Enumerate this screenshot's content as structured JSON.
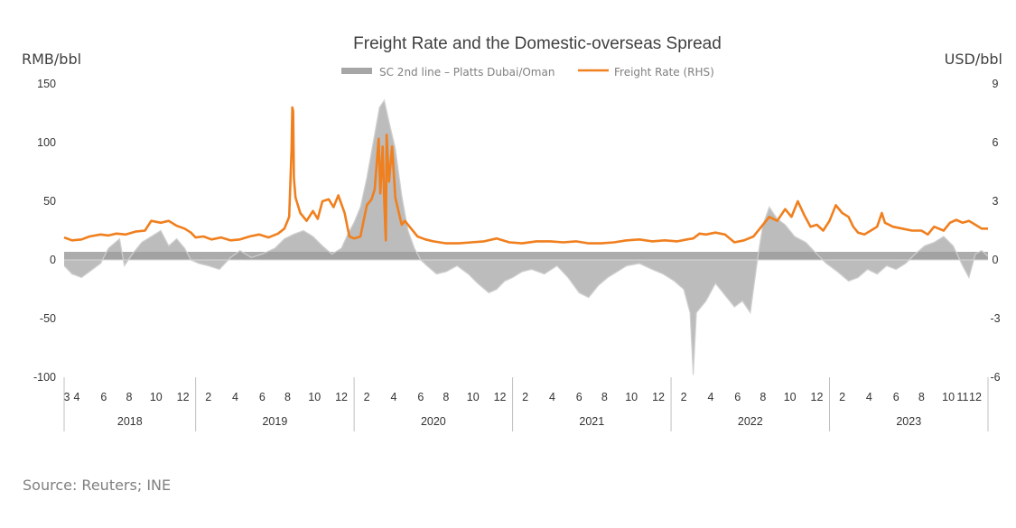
{
  "chart_data": {
    "type": "line",
    "title": "Freight Rate and the Domestic-overseas Spread",
    "ylabel_left": "RMB/bbl",
    "ylabel_right": "USD/bbl",
    "left_ticks": [
      "150",
      "100",
      "50",
      "0",
      "-50",
      "-100"
    ],
    "right_ticks": [
      "9",
      "6",
      "3",
      "0",
      "-3",
      "-6"
    ],
    "ylim_left": [
      -100,
      150
    ],
    "ylim_right": [
      -6,
      9
    ],
    "xlim": [
      2018.17,
      2024.0
    ],
    "month_ticks": [
      {
        "label": "3",
        "t": 2018.17
      },
      {
        "label": "4",
        "t": 2018.25
      },
      {
        "label": "6",
        "t": 2018.42
      },
      {
        "label": "8",
        "t": 2018.58
      },
      {
        "label": "10",
        "t": 2018.75
      },
      {
        "label": "12",
        "t": 2018.92
      },
      {
        "label": "2",
        "t": 2019.08
      },
      {
        "label": "4",
        "t": 2019.25
      },
      {
        "label": "6",
        "t": 2019.42
      },
      {
        "label": "8",
        "t": 2019.58
      },
      {
        "label": "10",
        "t": 2019.75
      },
      {
        "label": "12",
        "t": 2019.92
      },
      {
        "label": "2",
        "t": 2020.08
      },
      {
        "label": "4",
        "t": 2020.25
      },
      {
        "label": "6",
        "t": 2020.42
      },
      {
        "label": "8",
        "t": 2020.58
      },
      {
        "label": "10",
        "t": 2020.75
      },
      {
        "label": "12",
        "t": 2020.92
      },
      {
        "label": "2",
        "t": 2021.08
      },
      {
        "label": "4",
        "t": 2021.25
      },
      {
        "label": "6",
        "t": 2021.42
      },
      {
        "label": "8",
        "t": 2021.58
      },
      {
        "label": "10",
        "t": 2021.75
      },
      {
        "label": "12",
        "t": 2021.92
      },
      {
        "label": "2",
        "t": 2022.08
      },
      {
        "label": "4",
        "t": 2022.25
      },
      {
        "label": "6",
        "t": 2022.42
      },
      {
        "label": "8",
        "t": 2022.58
      },
      {
        "label": "10",
        "t": 2022.75
      },
      {
        "label": "12",
        "t": 2022.92
      },
      {
        "label": "2",
        "t": 2023.08
      },
      {
        "label": "4",
        "t": 2023.25
      },
      {
        "label": "6",
        "t": 2023.42
      },
      {
        "label": "8",
        "t": 2023.58
      },
      {
        "label": "10",
        "t": 2023.75
      },
      {
        "label": "11",
        "t": 2023.84
      },
      {
        "label": "12",
        "t": 2023.92
      }
    ],
    "year_separators": [
      2018.17,
      2019.0,
      2020.0,
      2021.0,
      2022.0,
      2023.0,
      2024.0
    ],
    "years": [
      "2018",
      "2019",
      "2020",
      "2021",
      "2022",
      "2023"
    ],
    "legend": {
      "position": "top-center"
    },
    "series": [
      {
        "name": "SC 2nd line – Platts Dubai/Oman",
        "axis": "left",
        "style": "area",
        "color": "#a6a6a6",
        "points": [
          [
            2018.17,
            -5
          ],
          [
            2018.22,
            -12
          ],
          [
            2018.28,
            -15
          ],
          [
            2018.35,
            -8
          ],
          [
            2018.4,
            -3
          ],
          [
            2018.45,
            10
          ],
          [
            2018.52,
            18
          ],
          [
            2018.55,
            -5
          ],
          [
            2018.6,
            5
          ],
          [
            2018.66,
            15
          ],
          [
            2018.72,
            20
          ],
          [
            2018.78,
            25
          ],
          [
            2018.83,
            12
          ],
          [
            2018.88,
            18
          ],
          [
            2018.93,
            10
          ],
          [
            2018.97,
            0
          ],
          [
            2019.02,
            -3
          ],
          [
            2019.08,
            -5
          ],
          [
            2019.15,
            -8
          ],
          [
            2019.22,
            2
          ],
          [
            2019.28,
            8
          ],
          [
            2019.35,
            2
          ],
          [
            2019.42,
            5
          ],
          [
            2019.5,
            10
          ],
          [
            2019.56,
            18
          ],
          [
            2019.62,
            22
          ],
          [
            2019.68,
            25
          ],
          [
            2019.74,
            20
          ],
          [
            2019.8,
            12
          ],
          [
            2019.86,
            5
          ],
          [
            2019.92,
            10
          ],
          [
            2019.96,
            22
          ],
          [
            2020.0,
            32
          ],
          [
            2020.04,
            45
          ],
          [
            2020.08,
            70
          ],
          [
            2020.12,
            100
          ],
          [
            2020.16,
            130
          ],
          [
            2020.19,
            136
          ],
          [
            2020.22,
            118
          ],
          [
            2020.26,
            95
          ],
          [
            2020.3,
            55
          ],
          [
            2020.34,
            25
          ],
          [
            2020.38,
            10
          ],
          [
            2020.42,
            0
          ],
          [
            2020.46,
            -5
          ],
          [
            2020.52,
            -12
          ],
          [
            2020.58,
            -10
          ],
          [
            2020.65,
            -5
          ],
          [
            2020.72,
            -12
          ],
          [
            2020.78,
            -20
          ],
          [
            2020.85,
            -28
          ],
          [
            2020.9,
            -25
          ],
          [
            2020.95,
            -18
          ],
          [
            2021.0,
            -15
          ],
          [
            2021.06,
            -10
          ],
          [
            2021.12,
            -8
          ],
          [
            2021.2,
            -12
          ],
          [
            2021.28,
            -5
          ],
          [
            2021.35,
            -15
          ],
          [
            2021.42,
            -28
          ],
          [
            2021.48,
            -32
          ],
          [
            2021.54,
            -22
          ],
          [
            2021.6,
            -15
          ],
          [
            2021.66,
            -10
          ],
          [
            2021.72,
            -5
          ],
          [
            2021.8,
            -3
          ],
          [
            2021.88,
            -8
          ],
          [
            2021.95,
            -12
          ],
          [
            2022.02,
            -18
          ],
          [
            2022.08,
            -25
          ],
          [
            2022.12,
            -45
          ],
          [
            2022.14,
            -98
          ],
          [
            2022.16,
            -45
          ],
          [
            2022.22,
            -35
          ],
          [
            2022.28,
            -20
          ],
          [
            2022.34,
            -30
          ],
          [
            2022.4,
            -40
          ],
          [
            2022.45,
            -35
          ],
          [
            2022.5,
            -45
          ],
          [
            2022.55,
            5
          ],
          [
            2022.58,
            30
          ],
          [
            2022.62,
            45
          ],
          [
            2022.67,
            35
          ],
          [
            2022.72,
            30
          ],
          [
            2022.78,
            20
          ],
          [
            2022.85,
            15
          ],
          [
            2022.92,
            5
          ],
          [
            2022.98,
            -3
          ],
          [
            2023.05,
            -10
          ],
          [
            2023.12,
            -18
          ],
          [
            2023.18,
            -15
          ],
          [
            2023.24,
            -8
          ],
          [
            2023.3,
            -12
          ],
          [
            2023.36,
            -5
          ],
          [
            2023.42,
            -8
          ],
          [
            2023.48,
            -3
          ],
          [
            2023.54,
            5
          ],
          [
            2023.6,
            12
          ],
          [
            2023.66,
            15
          ],
          [
            2023.72,
            20
          ],
          [
            2023.78,
            12
          ],
          [
            2023.84,
            -5
          ],
          [
            2023.88,
            -15
          ],
          [
            2023.92,
            5
          ],
          [
            2023.96,
            8
          ],
          [
            2024.0,
            3
          ]
        ]
      },
      {
        "name": "Freight Rate (RHS)",
        "axis": "right",
        "style": "line",
        "color": "#f07f1e",
        "points": [
          [
            2018.17,
            1.15
          ],
          [
            2018.22,
            1.0
          ],
          [
            2018.28,
            1.05
          ],
          [
            2018.33,
            1.2
          ],
          [
            2018.4,
            1.3
          ],
          [
            2018.45,
            1.25
          ],
          [
            2018.5,
            1.35
          ],
          [
            2018.56,
            1.3
          ],
          [
            2018.62,
            1.45
          ],
          [
            2018.68,
            1.5
          ],
          [
            2018.72,
            2.0
          ],
          [
            2018.78,
            1.9
          ],
          [
            2018.83,
            2.0
          ],
          [
            2018.88,
            1.75
          ],
          [
            2018.93,
            1.6
          ],
          [
            2018.97,
            1.4
          ],
          [
            2019.0,
            1.15
          ],
          [
            2019.05,
            1.2
          ],
          [
            2019.1,
            1.05
          ],
          [
            2019.16,
            1.15
          ],
          [
            2019.22,
            1.0
          ],
          [
            2019.28,
            1.05
          ],
          [
            2019.34,
            1.2
          ],
          [
            2019.4,
            1.3
          ],
          [
            2019.46,
            1.15
          ],
          [
            2019.52,
            1.35
          ],
          [
            2019.56,
            1.6
          ],
          [
            2019.59,
            2.2
          ],
          [
            2019.605,
            5.6
          ],
          [
            2019.61,
            7.8
          ],
          [
            2019.615,
            7.6
          ],
          [
            2019.62,
            4.2
          ],
          [
            2019.63,
            3.2
          ],
          [
            2019.66,
            2.4
          ],
          [
            2019.7,
            2.0
          ],
          [
            2019.74,
            2.5
          ],
          [
            2019.77,
            2.1
          ],
          [
            2019.8,
            3.0
          ],
          [
            2019.84,
            3.1
          ],
          [
            2019.87,
            2.7
          ],
          [
            2019.9,
            3.3
          ],
          [
            2019.94,
            2.4
          ],
          [
            2019.97,
            1.2
          ],
          [
            2020.0,
            1.1
          ],
          [
            2020.04,
            1.2
          ],
          [
            2020.08,
            2.8
          ],
          [
            2020.11,
            3.1
          ],
          [
            2020.13,
            3.6
          ],
          [
            2020.155,
            6.2
          ],
          [
            2020.165,
            3.4
          ],
          [
            2020.18,
            5.8
          ],
          [
            2020.19,
            3.0
          ],
          [
            2020.2,
            1.0
          ],
          [
            2020.205,
            6.4
          ],
          [
            2020.22,
            4.0
          ],
          [
            2020.24,
            5.8
          ],
          [
            2020.26,
            3.2
          ],
          [
            2020.28,
            2.5
          ],
          [
            2020.3,
            1.8
          ],
          [
            2020.32,
            2.0
          ],
          [
            2020.36,
            1.6
          ],
          [
            2020.4,
            1.2
          ],
          [
            2020.45,
            1.05
          ],
          [
            2020.5,
            0.95
          ],
          [
            2020.58,
            0.85
          ],
          [
            2020.66,
            0.85
          ],
          [
            2020.74,
            0.9
          ],
          [
            2020.82,
            0.95
          ],
          [
            2020.9,
            1.1
          ],
          [
            2020.98,
            0.9
          ],
          [
            2021.06,
            0.85
          ],
          [
            2021.15,
            0.95
          ],
          [
            2021.24,
            0.95
          ],
          [
            2021.32,
            0.9
          ],
          [
            2021.4,
            0.95
          ],
          [
            2021.48,
            0.85
          ],
          [
            2021.56,
            0.85
          ],
          [
            2021.64,
            0.9
          ],
          [
            2021.72,
            1.0
          ],
          [
            2021.8,
            1.05
          ],
          [
            2021.88,
            0.95
          ],
          [
            2021.96,
            1.0
          ],
          [
            2022.04,
            0.95
          ],
          [
            2022.1,
            1.05
          ],
          [
            2022.14,
            1.1
          ],
          [
            2022.18,
            1.35
          ],
          [
            2022.22,
            1.3
          ],
          [
            2022.28,
            1.4
          ],
          [
            2022.34,
            1.3
          ],
          [
            2022.4,
            0.9
          ],
          [
            2022.46,
            1.0
          ],
          [
            2022.52,
            1.2
          ],
          [
            2022.58,
            1.8
          ],
          [
            2022.62,
            2.2
          ],
          [
            2022.67,
            2.0
          ],
          [
            2022.72,
            2.6
          ],
          [
            2022.76,
            2.2
          ],
          [
            2022.8,
            3.0
          ],
          [
            2022.84,
            2.3
          ],
          [
            2022.88,
            1.7
          ],
          [
            2022.92,
            1.8
          ],
          [
            2022.96,
            1.5
          ],
          [
            2023.0,
            2.0
          ],
          [
            2023.04,
            2.8
          ],
          [
            2023.08,
            2.4
          ],
          [
            2023.12,
            2.2
          ],
          [
            2023.15,
            1.7
          ],
          [
            2023.18,
            1.4
          ],
          [
            2023.22,
            1.3
          ],
          [
            2023.26,
            1.5
          ],
          [
            2023.3,
            1.7
          ],
          [
            2023.33,
            2.4
          ],
          [
            2023.35,
            1.9
          ],
          [
            2023.4,
            1.7
          ],
          [
            2023.46,
            1.6
          ],
          [
            2023.52,
            1.5
          ],
          [
            2023.58,
            1.5
          ],
          [
            2023.62,
            1.3
          ],
          [
            2023.66,
            1.7
          ],
          [
            2023.72,
            1.5
          ],
          [
            2023.76,
            1.9
          ],
          [
            2023.8,
            2.05
          ],
          [
            2023.84,
            1.9
          ],
          [
            2023.88,
            2.0
          ],
          [
            2023.92,
            1.8
          ],
          [
            2023.96,
            1.6
          ],
          [
            2024.0,
            1.6
          ]
        ]
      }
    ]
  },
  "source": "Source: Reuters; INE"
}
